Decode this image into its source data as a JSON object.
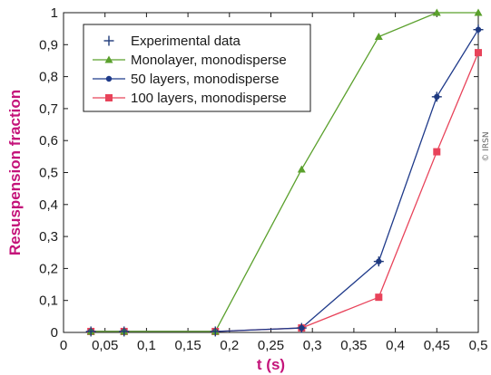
{
  "chart_data": {
    "type": "line",
    "xlabel": "t (s)",
    "ylabel": "Resuspension fraction",
    "xlim": [
      0,
      0.5
    ],
    "ylim": [
      0,
      1
    ],
    "x_ticks": [
      "0",
      "0,05",
      "0,1",
      "0,15",
      "0,2",
      "0,25",
      "0,3",
      "0,35",
      "0,4",
      "0,45",
      "0,5"
    ],
    "y_ticks": [
      "0",
      "0,1",
      "0,2",
      "0,3",
      "0,4",
      "0,5",
      "0,6",
      "0,7",
      "0,8",
      "0,9",
      "1"
    ],
    "legend_position": "top-left",
    "grid": false,
    "credit": "© IRSN",
    "series": [
      {
        "name": "Experimental data",
        "marker": "plus",
        "line": false,
        "color": "#1f3a7a",
        "points": [
          [
            0.033,
            0.003
          ],
          [
            0.073,
            0.003
          ],
          [
            0.183,
            0.003
          ],
          [
            0.287,
            0.014
          ],
          [
            0.38,
            0.222
          ],
          [
            0.45,
            0.737
          ],
          [
            0.5,
            0.947
          ]
        ]
      },
      {
        "name": "Monolayer, monodisperse",
        "marker": "triangle",
        "line": true,
        "color": "#5aa02c",
        "points": [
          [
            0.033,
            0.003
          ],
          [
            0.073,
            0.003
          ],
          [
            0.183,
            0.003
          ],
          [
            0.287,
            0.51
          ],
          [
            0.38,
            0.925
          ],
          [
            0.45,
            1.0
          ],
          [
            0.5,
            1.0
          ]
        ]
      },
      {
        "name": "50 layers, monodisperse",
        "marker": "circle",
        "line": true,
        "color": "#1f3a8a",
        "points": [
          [
            0.033,
            0.003
          ],
          [
            0.073,
            0.003
          ],
          [
            0.183,
            0.003
          ],
          [
            0.287,
            0.014
          ],
          [
            0.38,
            0.222
          ],
          [
            0.45,
            0.737
          ],
          [
            0.5,
            0.947
          ]
        ]
      },
      {
        "name": "100 layers, monodisperse",
        "marker": "square",
        "line": true,
        "color": "#e8435a",
        "points": [
          [
            0.033,
            0.003
          ],
          [
            0.073,
            0.003
          ],
          [
            0.183,
            0.003
          ],
          [
            0.287,
            0.014
          ],
          [
            0.38,
            0.11
          ],
          [
            0.45,
            0.565
          ],
          [
            0.5,
            0.875
          ]
        ]
      }
    ]
  }
}
